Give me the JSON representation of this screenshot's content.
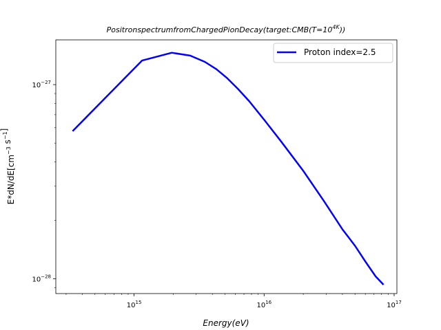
{
  "chart_data": {
    "type": "line",
    "title": "PositronspectrumfromChargedPionDecay(target:CMB(T=10^4K))",
    "xlabel": "Energy(eV)",
    "ylabel": "E*dN/dE[cm^-3 s^-1]",
    "xscale": "log",
    "yscale": "log",
    "xlim": [
      250000000000000.0,
      1.05e+17
    ],
    "ylim": [
      8.4e-29,
      1.7e-27
    ],
    "grid": false,
    "legend_position": "top-right",
    "x_ticks": [
      {
        "base": "10",
        "exp": "15",
        "value": 1000000000000000.0
      },
      {
        "base": "10",
        "exp": "16",
        "value": 1e+16
      },
      {
        "base": "10",
        "exp": "17",
        "value": 1e+17
      }
    ],
    "y_ticks": [
      {
        "base": "10",
        "exp": "−28",
        "value": 1e-28
      },
      {
        "base": "10",
        "exp": "−27",
        "value": 1e-27
      }
    ],
    "series": [
      {
        "name": "Proton index=2.5",
        "color": "#0000ff",
        "x": [
          340000000000000.0,
          1150000000000000.0,
          1950000000000000.0,
          2700000000000000.0,
          3500000000000000.0,
          4300000000000000.0,
          5200000000000000.0,
          6300000000000000.0,
          7700000000000000.0,
          1e+16,
          1.35e+16,
          2e+16,
          2.9e+16,
          4e+16,
          5e+16,
          6e+16,
          7.2e+16,
          8.2e+16
        ],
        "y": [
          5.8e-28,
          1.33e-27,
          1.46e-27,
          1.41e-27,
          1.31e-27,
          1.2e-27,
          1.08e-27,
          9.5e-28,
          8.2e-28,
          6.6e-28,
          5.1e-28,
          3.6e-28,
          2.5e-28,
          1.8e-28,
          1.48e-28,
          1.23e-28,
          1.03e-28,
          9.4e-29
        ]
      }
    ]
  }
}
